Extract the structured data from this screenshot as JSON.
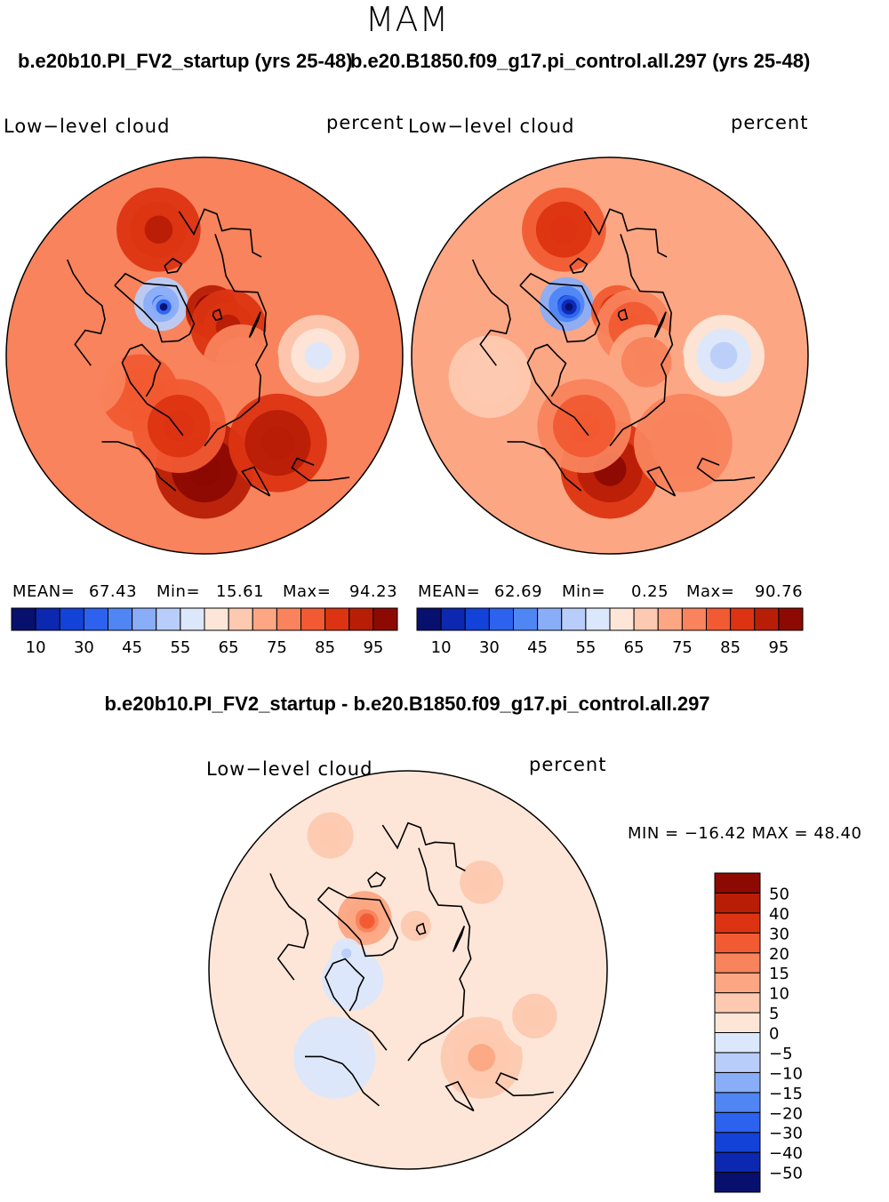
{
  "title": "MAM",
  "colors": {
    "abs": [
      "#08106e",
      "#0c28b0",
      "#1342d8",
      "#2c62ee",
      "#4f86f4",
      "#8aadf7",
      "#b8cdf9",
      "#dbe7fb",
      "#fde6d8",
      "#fdc9b0",
      "#fca683",
      "#f8835c",
      "#f15a32",
      "#dc3412",
      "#b81e06",
      "#8c0a02"
    ],
    "diff": [
      "#08106e",
      "#0c28b0",
      "#1342d8",
      "#2c62ee",
      "#4f86f4",
      "#8aadf7",
      "#b8cdf9",
      "#dbe7fb",
      "#fde6d8",
      "#fdc9b0",
      "#fca683",
      "#f8835c",
      "#f15a32",
      "#dc3412",
      "#b81e06",
      "#8c0a02"
    ],
    "land": "#000000"
  },
  "panels": [
    {
      "case": "b.e20b10.PI_FV2_startup (yrs 25-48)",
      "variable": "Low−level cloud",
      "units": "percent",
      "mean_label": "MEAN=",
      "mean": "67.43",
      "min_label": "Min=",
      "min": "15.61",
      "max_label": "Max=",
      "max": "94.23"
    },
    {
      "case": "b.e20.B1850.f09_g17.pi_control.all.297 (yrs 25-48)",
      "variable": "Low−level cloud",
      "units": "percent",
      "mean_label": "MEAN=",
      "mean": "62.69",
      "min_label": "Min=",
      "min": "0.25",
      "max_label": "Max=",
      "max": "90.76"
    }
  ],
  "diff_panel": {
    "case": "b.e20b10.PI_FV2_startup - b.e20.B1850.f09_g17.pi_control.all.297",
    "variable": "Low−level cloud",
    "units": "percent",
    "minmax": "MIN = −16.42 MAX =   48.40"
  },
  "chart_data": [
    {
      "type": "heatmap",
      "projection": "north-polar-stereographic",
      "title": "b.e20b10.PI_FV2_startup (yrs 25-48)",
      "variable": "Low-level cloud",
      "units": "percent",
      "mean": 67.43,
      "min": 15.61,
      "max": 94.23,
      "colorbar_levels": [
        10,
        15,
        20,
        25,
        30,
        35,
        40,
        45,
        50,
        55,
        60,
        65,
        70,
        75,
        80,
        85,
        90,
        95
      ],
      "colorbar_tick_labels": [
        "10",
        "30",
        "45",
        "55",
        "65",
        "75",
        "85",
        "95"
      ],
      "field_blobs": [
        {
          "lon": -60,
          "lat": 58,
          "r_deg": 8,
          "value": 70
        },
        {
          "lon": -40,
          "lat": 72,
          "r_deg": 7,
          "value": 30
        },
        {
          "lon": -40,
          "lat": 73,
          "r_deg": 3,
          "value": 15
        },
        {
          "lon": 10,
          "lat": 78,
          "r_deg": 7,
          "value": 90
        },
        {
          "lon": 40,
          "lat": 80,
          "r_deg": 10,
          "value": 82
        },
        {
          "lon": 180,
          "lat": 60,
          "r_deg": 12,
          "value": 92
        },
        {
          "lon": 140,
          "lat": 60,
          "r_deg": 12,
          "value": 85
        },
        {
          "lon": 90,
          "lat": 60,
          "r_deg": 10,
          "value": 48
        },
        {
          "lon": 100,
          "lat": 80,
          "r_deg": 10,
          "value": 68
        },
        {
          "lon": -120,
          "lat": 70,
          "r_deg": 10,
          "value": 74
        },
        {
          "lon": -100,
          "lat": 58,
          "r_deg": 10,
          "value": 66
        },
        {
          "lon": -20,
          "lat": 55,
          "r_deg": 10,
          "value": 83
        },
        {
          "lon": -160,
          "lat": 70,
          "r_deg": 12,
          "value": 80
        }
      ],
      "colorbar_tick_values": [
        10,
        30,
        45,
        55,
        65,
        75,
        85,
        95
      ]
    },
    {
      "type": "heatmap",
      "projection": "north-polar-stereographic",
      "title": "b.e20.B1850.f09_g17.pi_control.all.297 (yrs 25-48)",
      "variable": "Low-level cloud",
      "units": "percent",
      "mean": 62.69,
      "min": 0.25,
      "max": 90.76,
      "colorbar_levels": [
        10,
        15,
        20,
        25,
        30,
        35,
        40,
        45,
        50,
        55,
        60,
        65,
        70,
        75,
        80,
        85,
        90,
        95
      ],
      "colorbar_tick_labels": [
        "10",
        "30",
        "45",
        "55",
        "65",
        "75",
        "85",
        "95"
      ],
      "field_blobs": [
        {
          "lon": -60,
          "lat": 58,
          "r_deg": 8,
          "value": 62
        },
        {
          "lon": -40,
          "lat": 72,
          "r_deg": 7,
          "value": 22
        },
        {
          "lon": -40,
          "lat": 73,
          "r_deg": 3,
          "value": 5
        },
        {
          "lon": 10,
          "lat": 78,
          "r_deg": 7,
          "value": 80
        },
        {
          "lon": 40,
          "lat": 80,
          "r_deg": 10,
          "value": 74
        },
        {
          "lon": 180,
          "lat": 60,
          "r_deg": 12,
          "value": 87
        },
        {
          "lon": 140,
          "lat": 60,
          "r_deg": 12,
          "value": 70
        },
        {
          "lon": 90,
          "lat": 60,
          "r_deg": 10,
          "value": 42
        },
        {
          "lon": 100,
          "lat": 80,
          "r_deg": 10,
          "value": 66
        },
        {
          "lon": -120,
          "lat": 70,
          "r_deg": 10,
          "value": 62
        },
        {
          "lon": -100,
          "lat": 58,
          "r_deg": 10,
          "value": 58
        },
        {
          "lon": -20,
          "lat": 55,
          "r_deg": 10,
          "value": 80
        },
        {
          "lon": -160,
          "lat": 70,
          "r_deg": 12,
          "value": 72
        }
      ],
      "colorbar_tick_values": [
        10,
        30,
        45,
        55,
        65,
        75,
        85,
        95
      ]
    },
    {
      "type": "heatmap",
      "projection": "north-polar-stereographic",
      "title": "b.e20b10.PI_FV2_startup - b.e20.B1850.f09_g17.pi_control.all.297",
      "variable": "Low-level cloud",
      "units": "percent",
      "min": -16.42,
      "max": 48.4,
      "colorbar_levels": [
        -60,
        -50,
        -40,
        -30,
        -20,
        -15,
        -10,
        -5,
        0,
        5,
        10,
        15,
        20,
        30,
        40,
        50,
        60
      ],
      "colorbar_tick_labels": [
        "50",
        "40",
        "30",
        "20",
        "15",
        "10",
        "5",
        "0",
        "−5",
        "−10",
        "−15",
        "−20",
        "−30",
        "−40",
        "−50"
      ],
      "field_blobs": [
        {
          "lon": -40,
          "lat": 72,
          "r_deg": 7,
          "value": 16
        },
        {
          "lon": -40,
          "lat": 73,
          "r_deg": 3,
          "value": 28
        },
        {
          "lon": -100,
          "lat": 75,
          "r_deg": 8,
          "value": -3
        },
        {
          "lon": -75,
          "lat": 73,
          "r_deg": 4,
          "value": -6
        },
        {
          "lon": 140,
          "lat": 60,
          "r_deg": 10,
          "value": 11
        },
        {
          "lon": 110,
          "lat": 55,
          "r_deg": 8,
          "value": 7
        },
        {
          "lon": 10,
          "lat": 78,
          "r_deg": 6,
          "value": 7
        },
        {
          "lon": 40,
          "lat": 60,
          "r_deg": 8,
          "value": 7
        },
        {
          "lon": -140,
          "lat": 60,
          "r_deg": 10,
          "value": -3
        },
        {
          "lon": -30,
          "lat": 50,
          "r_deg": 8,
          "value": 6
        }
      ],
      "colorbar_tick_values": [
        50,
        40,
        30,
        20,
        15,
        10,
        5,
        0,
        -5,
        -10,
        -15,
        -20,
        -30,
        -40,
        -50
      ]
    }
  ]
}
